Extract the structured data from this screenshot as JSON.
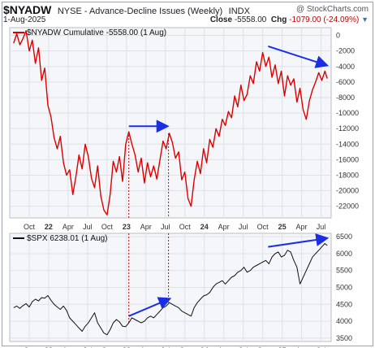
{
  "header": {
    "symbol": "$NYADW",
    "description": "NYSE - Advance-Decline Issues (Weekly)",
    "index_label": "INDX",
    "brand": "@ StockCharts.com",
    "date": "1-Aug-2025",
    "close_label": "Close",
    "close_value": "-5558.00",
    "chg_label": "Chg",
    "chg_value": "-1079.00 (-24.09%)"
  },
  "chart_data": [
    {
      "type": "line",
      "legend": "$NYADW Cumulative -5558.00 (1 Aug)",
      "color": "#dd0000",
      "ylim": [
        -23500,
        1000
      ],
      "yticks": [
        0,
        -2000,
        -4000,
        -6000,
        -8000,
        -10000,
        -12000,
        -14000,
        -16000,
        -18000,
        -20000,
        -22000
      ],
      "ytick_labels": [
        "0",
        "-2000",
        "-4000",
        "-6000",
        "-8000",
        "-10000",
        "-12000",
        "-14000",
        "-16000",
        "-18000",
        "-20000",
        "-22000"
      ],
      "x_ticks": [
        {
          "label": "Oct",
          "t": 2021.75
        },
        {
          "label": "22",
          "t": 2022.0,
          "bold": true
        },
        {
          "label": "Apr",
          "t": 2022.25
        },
        {
          "label": "Jul",
          "t": 2022.5
        },
        {
          "label": "Oct",
          "t": 2022.75
        },
        {
          "label": "23",
          "t": 2023.0,
          "bold": true
        },
        {
          "label": "Apr",
          "t": 2023.25
        },
        {
          "label": "Jul",
          "t": 2023.5
        },
        {
          "label": "Oct",
          "t": 2023.75
        },
        {
          "label": "24",
          "t": 2024.0,
          "bold": true
        },
        {
          "label": "Apr",
          "t": 2024.25
        },
        {
          "label": "Jul",
          "t": 2024.5
        },
        {
          "label": "Oct",
          "t": 2024.75
        },
        {
          "label": "25",
          "t": 2025.0,
          "bold": true
        },
        {
          "label": "Apr",
          "t": 2025.25
        },
        {
          "label": "Jul",
          "t": 2025.5
        }
      ],
      "x": [
        2021.55,
        2021.59,
        2021.63,
        2021.67,
        2021.71,
        2021.75,
        2021.79,
        2021.83,
        2021.87,
        2021.91,
        2021.95,
        2021.99,
        2022.03,
        2022.07,
        2022.11,
        2022.15,
        2022.19,
        2022.23,
        2022.27,
        2022.31,
        2022.35,
        2022.39,
        2022.43,
        2022.47,
        2022.51,
        2022.55,
        2022.59,
        2022.63,
        2022.67,
        2022.71,
        2022.75,
        2022.79,
        2022.83,
        2022.87,
        2022.91,
        2022.95,
        2022.99,
        2023.03,
        2023.07,
        2023.11,
        2023.15,
        2023.19,
        2023.23,
        2023.27,
        2023.31,
        2023.35,
        2023.39,
        2023.43,
        2023.47,
        2023.51,
        2023.55,
        2023.59,
        2023.63,
        2023.67,
        2023.71,
        2023.75,
        2023.79,
        2023.83,
        2023.87,
        2023.91,
        2023.95,
        2023.99,
        2024.03,
        2024.07,
        2024.11,
        2024.15,
        2024.19,
        2024.23,
        2024.27,
        2024.31,
        2024.35,
        2024.39,
        2024.43,
        2024.47,
        2024.51,
        2024.55,
        2024.59,
        2024.63,
        2024.67,
        2024.71,
        2024.75,
        2024.79,
        2024.83,
        2024.87,
        2024.91,
        2024.95,
        2024.99,
        2025.03,
        2025.07,
        2025.11,
        2025.15,
        2025.19,
        2025.23,
        2025.27,
        2025.31,
        2025.35,
        2025.39,
        2025.43,
        2025.47,
        2025.51,
        2025.55,
        2025.58
      ],
      "values": [
        -1000,
        200,
        -1200,
        -400,
        600,
        -2000,
        -600,
        -3600,
        -1600,
        -5800,
        -4200,
        -9000,
        -10500,
        -13200,
        -14600,
        -13000,
        -16400,
        -18000,
        -17300,
        -20500,
        -18200,
        -15400,
        -17200,
        -14000,
        -15600,
        -18400,
        -19600,
        -16800,
        -20700,
        -22500,
        -23100,
        -20500,
        -16200,
        -17600,
        -15600,
        -18800,
        -14000,
        -12400,
        -14000,
        -15400,
        -17600,
        -15800,
        -19000,
        -16400,
        -18200,
        -16800,
        -18500,
        -16000,
        -13600,
        -14600,
        -12600,
        -13800,
        -15800,
        -15000,
        -18600,
        -17600,
        -21000,
        -22000,
        -18600,
        -16200,
        -17800,
        -14600,
        -16400,
        -13400,
        -14400,
        -12000,
        -13000,
        -10800,
        -11600,
        -9800,
        -10600,
        -7800,
        -9200,
        -6400,
        -8400,
        -7600,
        -5200,
        -6200,
        -3400,
        -4600,
        -2200,
        -4000,
        -2800,
        -5400,
        -3800,
        -6200,
        -4600,
        -7800,
        -5200,
        -6400,
        -5600,
        -8600,
        -6800,
        -9600,
        -10800,
        -8400,
        -7000,
        -6000,
        -4800,
        -5800,
        -4600,
        -5558
      ],
      "dashed_guides": [
        2023.03,
        2023.54
      ],
      "annotations": [
        {
          "x1": 2023.03,
          "y1": -11700,
          "x2": 2023.51,
          "y2": -11700,
          "color": "#1a2ee6"
        },
        {
          "x1": 2024.82,
          "y1": -1400,
          "x2": 2025.56,
          "y2": -3800,
          "color": "#1a2ee6"
        }
      ]
    },
    {
      "type": "line",
      "legend": "$SPX 6238.01 (1 Aug)",
      "color": "#111111",
      "ylim": [
        3400,
        6600
      ],
      "yticks": [
        3500,
        4000,
        4500,
        5000,
        5500,
        6000,
        6500
      ],
      "ytick_labels": [
        "3500",
        "4000",
        "4500",
        "5000",
        "5500",
        "6000",
        "6500"
      ],
      "x": [
        2021.55,
        2021.59,
        2021.63,
        2021.67,
        2021.71,
        2021.75,
        2021.79,
        2021.83,
        2021.87,
        2021.91,
        2021.95,
        2021.99,
        2022.03,
        2022.07,
        2022.11,
        2022.15,
        2022.19,
        2022.23,
        2022.27,
        2022.31,
        2022.35,
        2022.39,
        2022.43,
        2022.47,
        2022.51,
        2022.55,
        2022.59,
        2022.63,
        2022.67,
        2022.71,
        2022.75,
        2022.79,
        2022.83,
        2022.87,
        2022.91,
        2022.95,
        2022.99,
        2023.03,
        2023.07,
        2023.11,
        2023.15,
        2023.19,
        2023.23,
        2023.27,
        2023.31,
        2023.35,
        2023.39,
        2023.43,
        2023.47,
        2023.51,
        2023.55,
        2023.59,
        2023.63,
        2023.67,
        2023.71,
        2023.75,
        2023.79,
        2023.83,
        2023.87,
        2023.91,
        2023.95,
        2023.99,
        2024.03,
        2024.07,
        2024.11,
        2024.15,
        2024.19,
        2024.23,
        2024.27,
        2024.31,
        2024.35,
        2024.39,
        2024.43,
        2024.47,
        2024.51,
        2024.55,
        2024.59,
        2024.63,
        2024.67,
        2024.71,
        2024.75,
        2024.79,
        2024.83,
        2024.87,
        2024.91,
        2024.95,
        2024.99,
        2025.03,
        2025.07,
        2025.11,
        2025.15,
        2025.19,
        2025.23,
        2025.27,
        2025.31,
        2025.35,
        2025.39,
        2025.43,
        2025.47,
        2025.51,
        2025.55,
        2025.58
      ],
      "values": [
        4400,
        4450,
        4380,
        4460,
        4520,
        4420,
        4580,
        4650,
        4600,
        4700,
        4680,
        4760,
        4620,
        4500,
        4420,
        4350,
        4450,
        4320,
        4100,
        4000,
        3900,
        3800,
        3700,
        3850,
        3950,
        4100,
        4250,
        3950,
        3800,
        3650,
        3600,
        3750,
        3950,
        4050,
        3980,
        3850,
        3840,
        3950,
        4100,
        4050,
        4000,
        3950,
        4000,
        4100,
        4150,
        4100,
        4200,
        4300,
        4400,
        4450,
        4550,
        4500,
        4450,
        4400,
        4300,
        4250,
        4200,
        4150,
        4400,
        4550,
        4650,
        4750,
        4780,
        4850,
        5000,
        5100,
        5150,
        5200,
        5100,
        5200,
        5300,
        5350,
        5450,
        5500,
        5600,
        5450,
        5500,
        5600,
        5650,
        5700,
        5750,
        5800,
        5700,
        5900,
        6000,
        6050,
        5900,
        5950,
        6100,
        6050,
        5800,
        5600,
        5100,
        5300,
        5500,
        5700,
        5900,
        6000,
        6100,
        6200,
        6300,
        6238
      ],
      "dashed_guides": [
        2023.03,
        2023.54
      ],
      "annotations": [
        {
          "x1": 2023.03,
          "y1": 4150,
          "x2": 2023.54,
          "y2": 4650,
          "color": "#1a2ee6"
        },
        {
          "x1": 2024.82,
          "y1": 6200,
          "x2": 2025.56,
          "y2": 6450,
          "color": "#1a2ee6"
        }
      ]
    }
  ]
}
